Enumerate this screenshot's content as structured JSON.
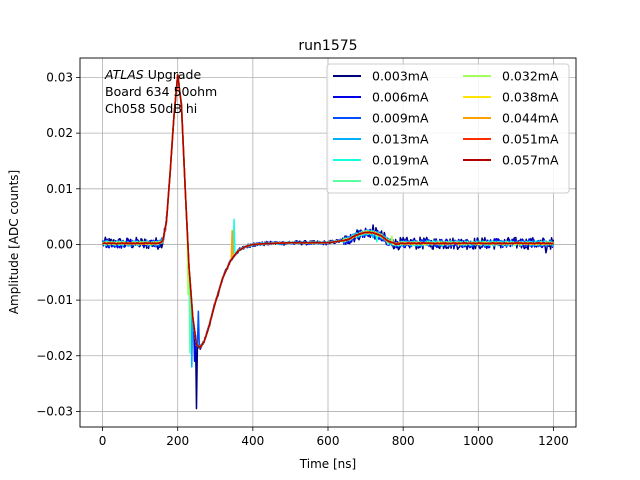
{
  "chart_data": {
    "type": "line",
    "title": "run1575",
    "xlabel": "Time [ns]",
    "ylabel": "Amplitude [ADC counts]",
    "xlim": [
      -60,
      1260
    ],
    "ylim": [
      -0.0328,
      0.0335
    ],
    "x_ticks": [
      0,
      200,
      400,
      600,
      800,
      1000,
      1200
    ],
    "x_tick_labels": [
      "0",
      "200",
      "400",
      "600",
      "800",
      "1000",
      "1200"
    ],
    "y_ticks": [
      -0.03,
      -0.02,
      -0.01,
      0.0,
      0.01,
      0.02,
      0.03
    ],
    "y_tick_labels": [
      "−0.03",
      "−0.02",
      "−0.01",
      "0.00",
      "0.01",
      "0.02",
      "0.03"
    ],
    "grid": true,
    "legend": {
      "placement": "top-right",
      "columns": 2
    },
    "annotation": {
      "lines": [
        {
          "italic": "ATLAS",
          "rest": " Upgrade"
        },
        {
          "italic": "",
          "rest": " Board 634 50ohm"
        },
        {
          "italic": "",
          "rest": " Ch058 50dB hi"
        }
      ]
    },
    "pulse_shape": {
      "x": [
        0,
        150,
        160,
        170,
        180,
        190,
        200,
        210,
        220,
        230,
        240,
        250,
        260,
        270,
        280,
        290,
        300,
        320,
        340,
        360,
        380,
        400,
        450,
        500,
        600,
        650,
        680,
        700,
        720,
        740,
        760,
        780,
        800,
        900,
        1000,
        1100,
        1200
      ],
      "y": [
        0.0002,
        0.0002,
        0.0006,
        0.004,
        0.013,
        0.023,
        0.0305,
        0.025,
        0.01,
        -0.004,
        -0.013,
        -0.018,
        -0.0185,
        -0.0175,
        -0.0155,
        -0.013,
        -0.0105,
        -0.006,
        -0.003,
        -0.0012,
        -0.0004,
        0.0,
        0.0002,
        0.0003,
        0.0003,
        0.0008,
        0.0018,
        0.0022,
        0.0021,
        0.0016,
        0.0006,
        0.0001,
        0.0002,
        0.0002,
        0.0002,
        0.0002,
        0.0002
      ]
    },
    "series": [
      {
        "name": "0.003mA",
        "color": "#00007f",
        "noise": 0.0011,
        "spikes": [
          [
            250,
            -0.0295
          ],
          [
            720,
            0.0035
          ],
          [
            1180,
            -0.0015
          ]
        ]
      },
      {
        "name": "0.006mA",
        "color": "#0000e6",
        "noise": 0.0008,
        "spikes": [
          [
            245,
            -0.021
          ]
        ]
      },
      {
        "name": "0.009mA",
        "color": "#0050ff",
        "noise": 0.0006,
        "spikes": [
          [
            255,
            -0.012
          ]
        ]
      },
      {
        "name": "0.013mA",
        "color": "#00b0ff",
        "noise": 0.0005,
        "spikes": [
          [
            238,
            -0.022
          ],
          [
            720,
            0.0012
          ]
        ]
      },
      {
        "name": "0.019mA",
        "color": "#13ffe0",
        "noise": 0.0004,
        "spikes": [
          [
            350,
            0.0045
          ],
          [
            730,
            0.0005
          ]
        ]
      },
      {
        "name": "0.025mA",
        "color": "#5affa0",
        "noise": 0.0003,
        "spikes": [
          [
            232,
            -0.0195
          ],
          [
            760,
            0.0
          ]
        ]
      },
      {
        "name": "0.032mA",
        "color": "#a4ff5a",
        "noise": 0.00025,
        "spikes": [
          [
            228,
            -0.009
          ],
          [
            770,
            0.0015
          ]
        ]
      },
      {
        "name": "0.038mA",
        "color": "#ffe600",
        "noise": 0.0002,
        "spikes": [
          [
            280,
            -0.0155
          ]
        ]
      },
      {
        "name": "0.044mA",
        "color": "#ffa000",
        "noise": 0.00015,
        "spikes": [
          [
            345,
            0.0025
          ]
        ]
      },
      {
        "name": "0.051mA",
        "color": "#ff3000",
        "noise": 0.0001,
        "spikes": []
      },
      {
        "name": "0.057mA",
        "color": "#b20000",
        "noise": 0.0001,
        "spikes": []
      }
    ]
  }
}
